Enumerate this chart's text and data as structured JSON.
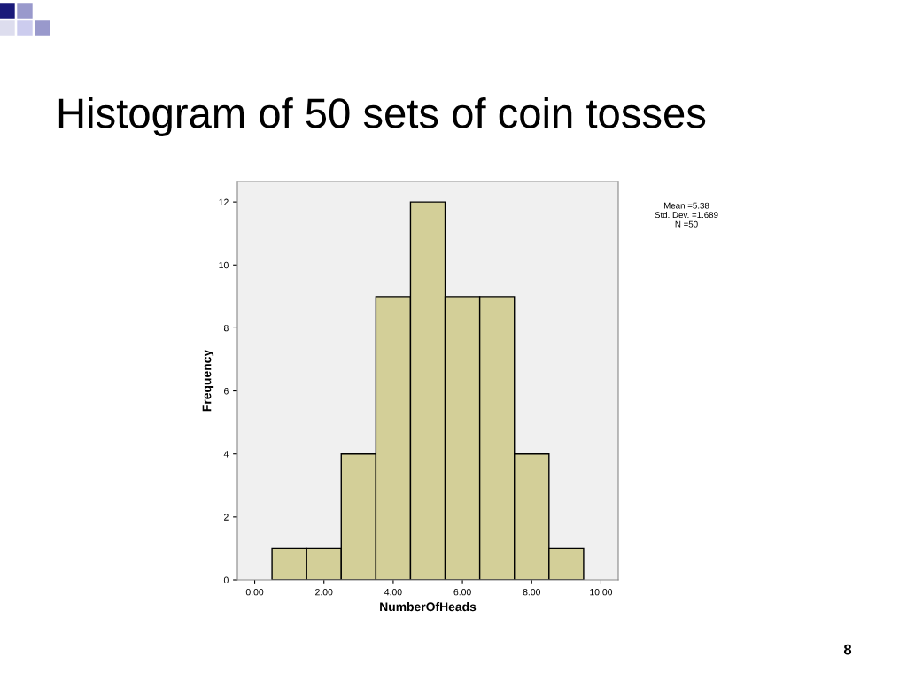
{
  "chart_data": {
    "type": "histogram",
    "title": "Histogram of 50 sets of coin tosses",
    "xlabel": "NumberOfHeads",
    "ylabel": "Frequency",
    "bins": [
      0.5,
      1.5,
      2.5,
      3.5,
      4.5,
      5.5,
      6.5,
      7.5,
      8.5,
      9.5
    ],
    "values": [
      1,
      1,
      4,
      9,
      12,
      9,
      9,
      4,
      1
    ],
    "color": "#d3cf98",
    "xlim": [
      -0.5,
      10.5
    ],
    "xticks": [
      {
        "value": 0,
        "label": "0.00"
      },
      {
        "value": 2,
        "label": "2.00"
      },
      {
        "value": 4,
        "label": "4.00"
      },
      {
        "value": 6,
        "label": "6.00"
      },
      {
        "value": 8,
        "label": "8.00"
      },
      {
        "value": 10,
        "label": "10.00"
      }
    ],
    "ylim": [
      0,
      12.65
    ],
    "yticks": [
      0,
      2,
      4,
      6,
      8,
      10,
      12
    ],
    "grid": false,
    "annotations": [
      "Mean =5.38",
      "Std. Dev. =1.689",
      "N =50",
      "8"
    ]
  }
}
